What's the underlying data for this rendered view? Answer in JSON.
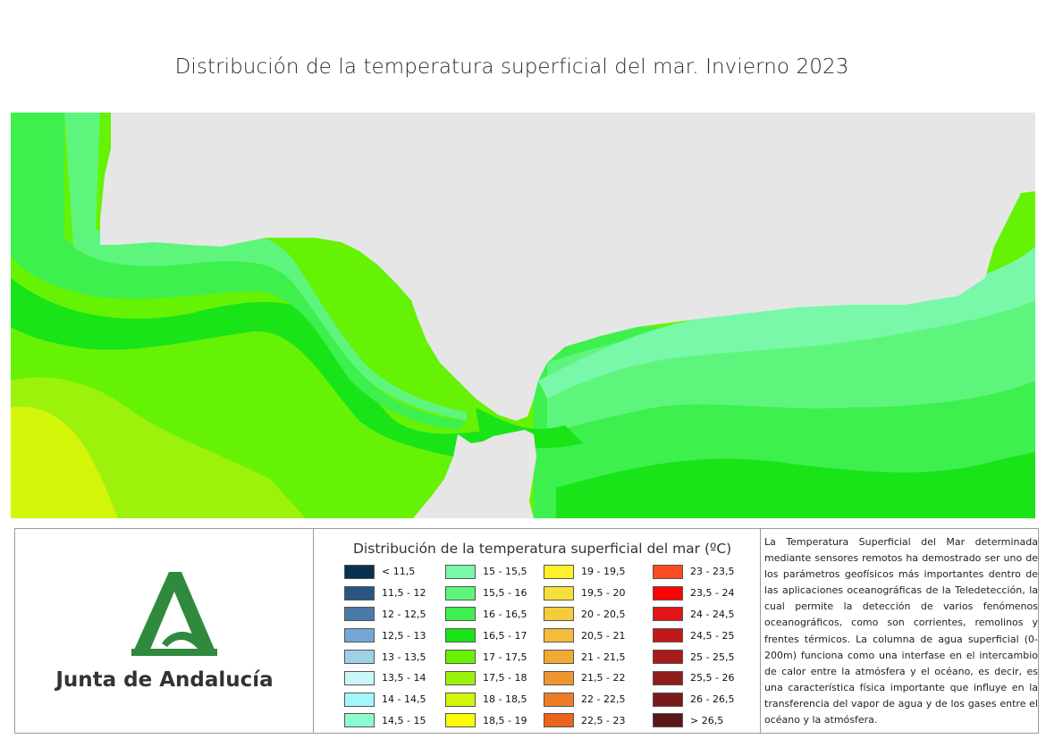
{
  "title": "Distribución de la temperatura superficial del mar. Invierno 2023",
  "logo": {
    "text": "Junta de Andalucía"
  },
  "legend": {
    "title": "Distribución de la temperatura superficial del mar (ºC)",
    "items": [
      {
        "label": "< 11,5",
        "color": "#08304f"
      },
      {
        "label": "11,5 - 12",
        "color": "#2a5580"
      },
      {
        "label": "12 - 12,5",
        "color": "#4c7aa8"
      },
      {
        "label": "12,5 - 13",
        "color": "#74a7d4"
      },
      {
        "label": "13 - 13,5",
        "color": "#a0cfe8"
      },
      {
        "label": "13,5 - 14",
        "color": "#cbf7fb"
      },
      {
        "label": "14 - 14,5",
        "color": "#a4f7fb"
      },
      {
        "label": "14,5 - 15",
        "color": "#8dfad0"
      },
      {
        "label": "15 - 15,5",
        "color": "#78f8a8"
      },
      {
        "label": "15,5 - 16",
        "color": "#5ef57c"
      },
      {
        "label": "16 - 16,5",
        "color": "#3df04e"
      },
      {
        "label": "16,5 - 17",
        "color": "#18e418"
      },
      {
        "label": "17 - 17,5",
        "color": "#66f205"
      },
      {
        "label": "17,5 - 18",
        "color": "#9cf20a"
      },
      {
        "label": "18 - 18,5",
        "color": "#d2f509"
      },
      {
        "label": "18,5 - 19",
        "color": "#fdfb0a"
      },
      {
        "label": "19 - 19,5",
        "color": "#fef12a"
      },
      {
        "label": "19,5 - 20",
        "color": "#f8e03a"
      },
      {
        "label": "20 - 20,5",
        "color": "#f6cc3c"
      },
      {
        "label": "20,5 - 21",
        "color": "#f4bc3c"
      },
      {
        "label": "21 - 21,5",
        "color": "#f2aa36"
      },
      {
        "label": "21,5 - 22",
        "color": "#f09530"
      },
      {
        "label": "22 - 22,5",
        "color": "#ee7d26"
      },
      {
        "label": "22,5 - 23",
        "color": "#ec641c"
      },
      {
        "label": "23 - 23,5",
        "color": "#fa4c22"
      },
      {
        "label": "23,5 - 24",
        "color": "#fd0404"
      },
      {
        "label": "24 - 24,5",
        "color": "#e01515"
      },
      {
        "label": "24,5 - 25",
        "color": "#c11919"
      },
      {
        "label": "25 - 25,5",
        "color": "#a81c1c"
      },
      {
        "label": "25,5 - 26",
        "color": "#901c1c"
      },
      {
        "label": "26 - 26,5",
        "color": "#7a1a1a"
      },
      {
        "label": "> 26,5",
        "color": "#5a1818"
      }
    ]
  },
  "description": "La Temperatura Superficial del Mar determinada mediante sensores remotos ha demostrado ser uno de los parámetros geofísicos más importantes dentro de las aplicaciones oceanográficas de la Teledetección, la cual permite la detección de varios fenómenos oceanográficos, como son corrientes, remolinos y frentes térmicos. La columna de agua superficial (0-200m) funciona como una interfase en el intercambio de calor entre la atmósfera y el océano, es decir, es una característica física importante que influye en la transferencia del vapor de agua y de los gases entre el océano y la atmósfera.",
  "colors": {
    "land": "#e6e6e6",
    "brand_green": "#2f8a3d"
  }
}
